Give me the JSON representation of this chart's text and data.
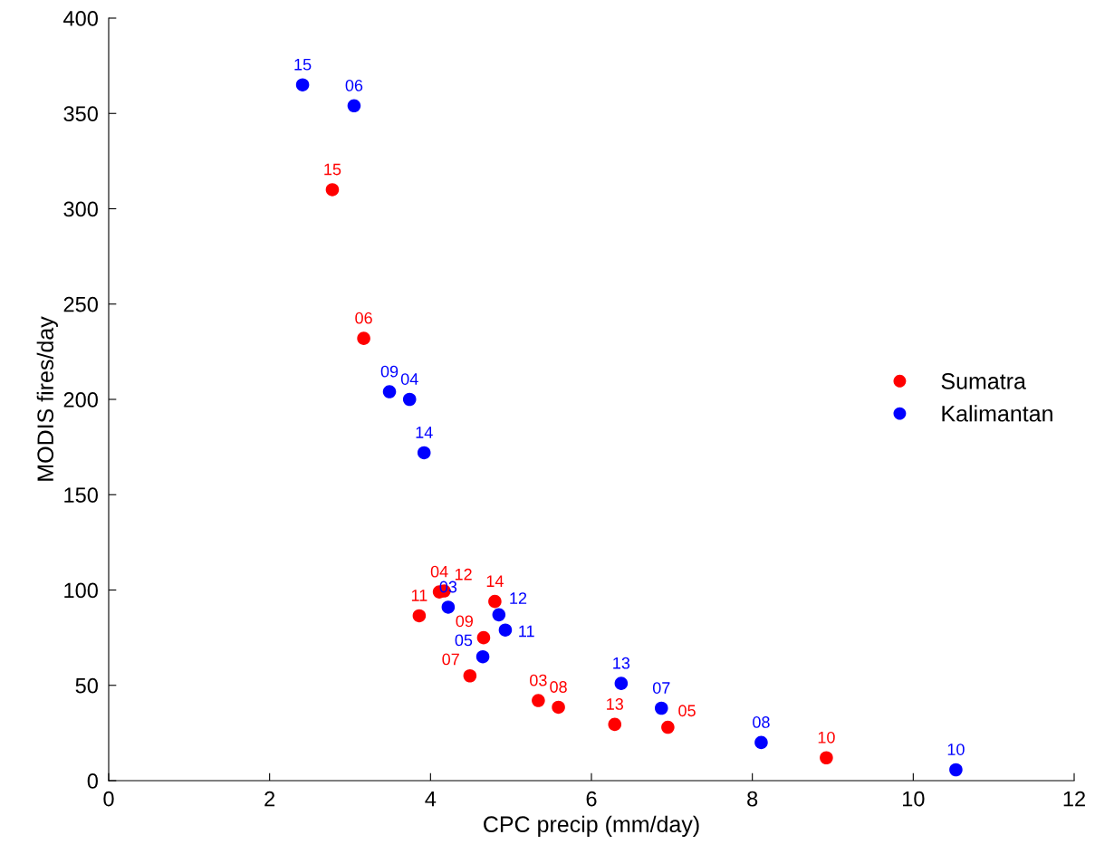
{
  "chart_data": {
    "type": "scatter",
    "xlabel": "CPC precip (mm/day)",
    "ylabel": "MODIS fires/day",
    "xlim": [
      0,
      12
    ],
    "ylim": [
      0,
      400
    ],
    "xticks": [
      0,
      2,
      4,
      6,
      8,
      10,
      12
    ],
    "yticks": [
      0,
      50,
      100,
      150,
      200,
      250,
      300,
      350,
      400
    ],
    "grid": false,
    "legend": "right",
    "marker": "circle",
    "series": [
      {
        "name": "Sumatra",
        "color": "#ff0000",
        "x": [
          2.78,
          3.17,
          3.86,
          4.11,
          4.17,
          4.8,
          4.66,
          4.49,
          5.34,
          5.59,
          6.29,
          6.95,
          8.92
        ],
        "values": [
          310,
          232,
          86.5,
          99,
          99.5,
          94,
          75,
          55,
          42,
          38.5,
          29.5,
          28,
          12
        ]
      },
      {
        "name": "Kalimantan",
        "color": "#0000ff",
        "x": [
          2.41,
          3.05,
          3.49,
          3.74,
          3.92,
          4.22,
          4.65,
          4.85,
          4.93,
          6.37,
          6.87,
          8.11,
          10.53
        ],
        "values": [
          365,
          354,
          204,
          200,
          172,
          91,
          65,
          87,
          79,
          51,
          38,
          20,
          5.7
        ]
      }
    ],
    "annotations": [
      {
        "text": "15",
        "x": 2.78,
        "y": 310
      },
      {
        "text": "06",
        "x": 3.17,
        "y": 232
      },
      {
        "text": "11",
        "x": 3.86,
        "y": 86.5
      },
      {
        "text": "04",
        "x": 4.11,
        "y": 99
      },
      {
        "text": "12",
        "x": 4.17,
        "y": 99.5
      },
      {
        "text": "14",
        "x": 4.8,
        "y": 94
      },
      {
        "text": "09",
        "x": 4.66,
        "y": 75
      },
      {
        "text": "07",
        "x": 4.49,
        "y": 55
      },
      {
        "text": "03",
        "x": 5.34,
        "y": 42
      },
      {
        "text": "08",
        "x": 5.59,
        "y": 38.5
      },
      {
        "text": "13",
        "x": 6.29,
        "y": 29.5
      },
      {
        "text": "05",
        "x": 6.95,
        "y": 28
      },
      {
        "text": "10",
        "x": 8.92,
        "y": 12
      },
      {
        "text": "15",
        "x": 2.41,
        "y": 365
      },
      {
        "text": "06",
        "x": 3.05,
        "y": 354
      },
      {
        "text": "09",
        "x": 3.49,
        "y": 204
      },
      {
        "text": "04",
        "x": 3.74,
        "y": 200
      },
      {
        "text": "14",
        "x": 3.92,
        "y": 172
      },
      {
        "text": "03",
        "x": 4.22,
        "y": 91
      },
      {
        "text": "05",
        "x": 4.65,
        "y": 65
      },
      {
        "text": "12",
        "x": 4.85,
        "y": 87
      },
      {
        "text": "11",
        "x": 4.93,
        "y": 79
      },
      {
        "text": "13",
        "x": 6.37,
        "y": 51
      },
      {
        "text": "07",
        "x": 6.87,
        "y": 38
      },
      {
        "text": "08",
        "x": 8.11,
        "y": 20
      },
      {
        "text": "10",
        "x": 10.53,
        "y": 5.7
      }
    ]
  }
}
